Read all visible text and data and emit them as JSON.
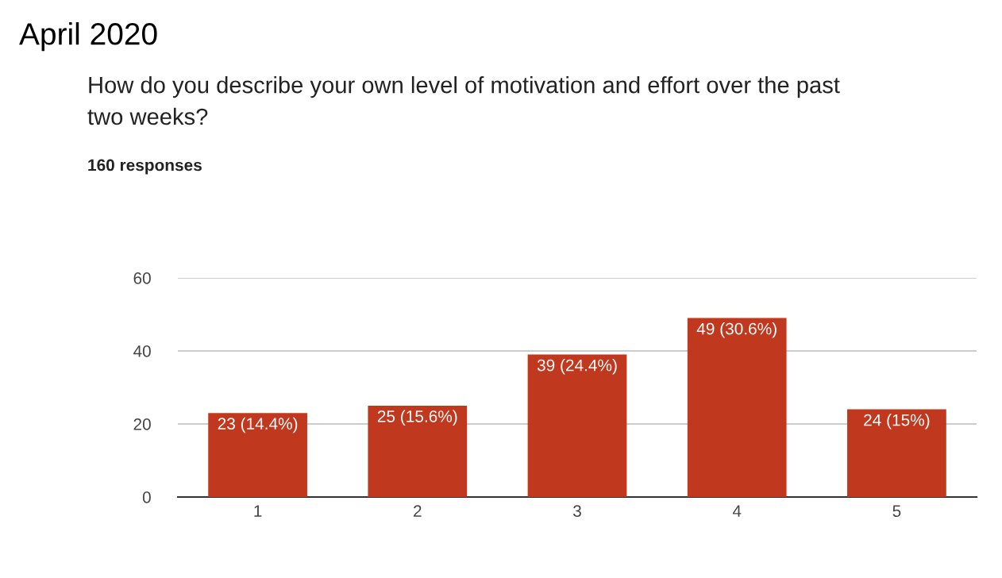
{
  "chart_data": {
    "type": "bar",
    "title": "How do you describe your own level of motivation and effort over the past\ntwo weeks?",
    "subtitle": "160 responses",
    "annotations": [
      "April 2020"
    ],
    "categories": [
      "1",
      "2",
      "3",
      "4",
      "5"
    ],
    "values": [
      23,
      25,
      39,
      49,
      24
    ],
    "value_labels": [
      "23 (14.4%)",
      "25 (15.6%)",
      "39 (24.4%)",
      "49 (30.6%)",
      "24 (15%)"
    ],
    "color": "#c0391f",
    "ylim": [
      0,
      60
    ],
    "yticks": [
      0,
      20,
      40,
      60
    ],
    "grid": "y"
  }
}
